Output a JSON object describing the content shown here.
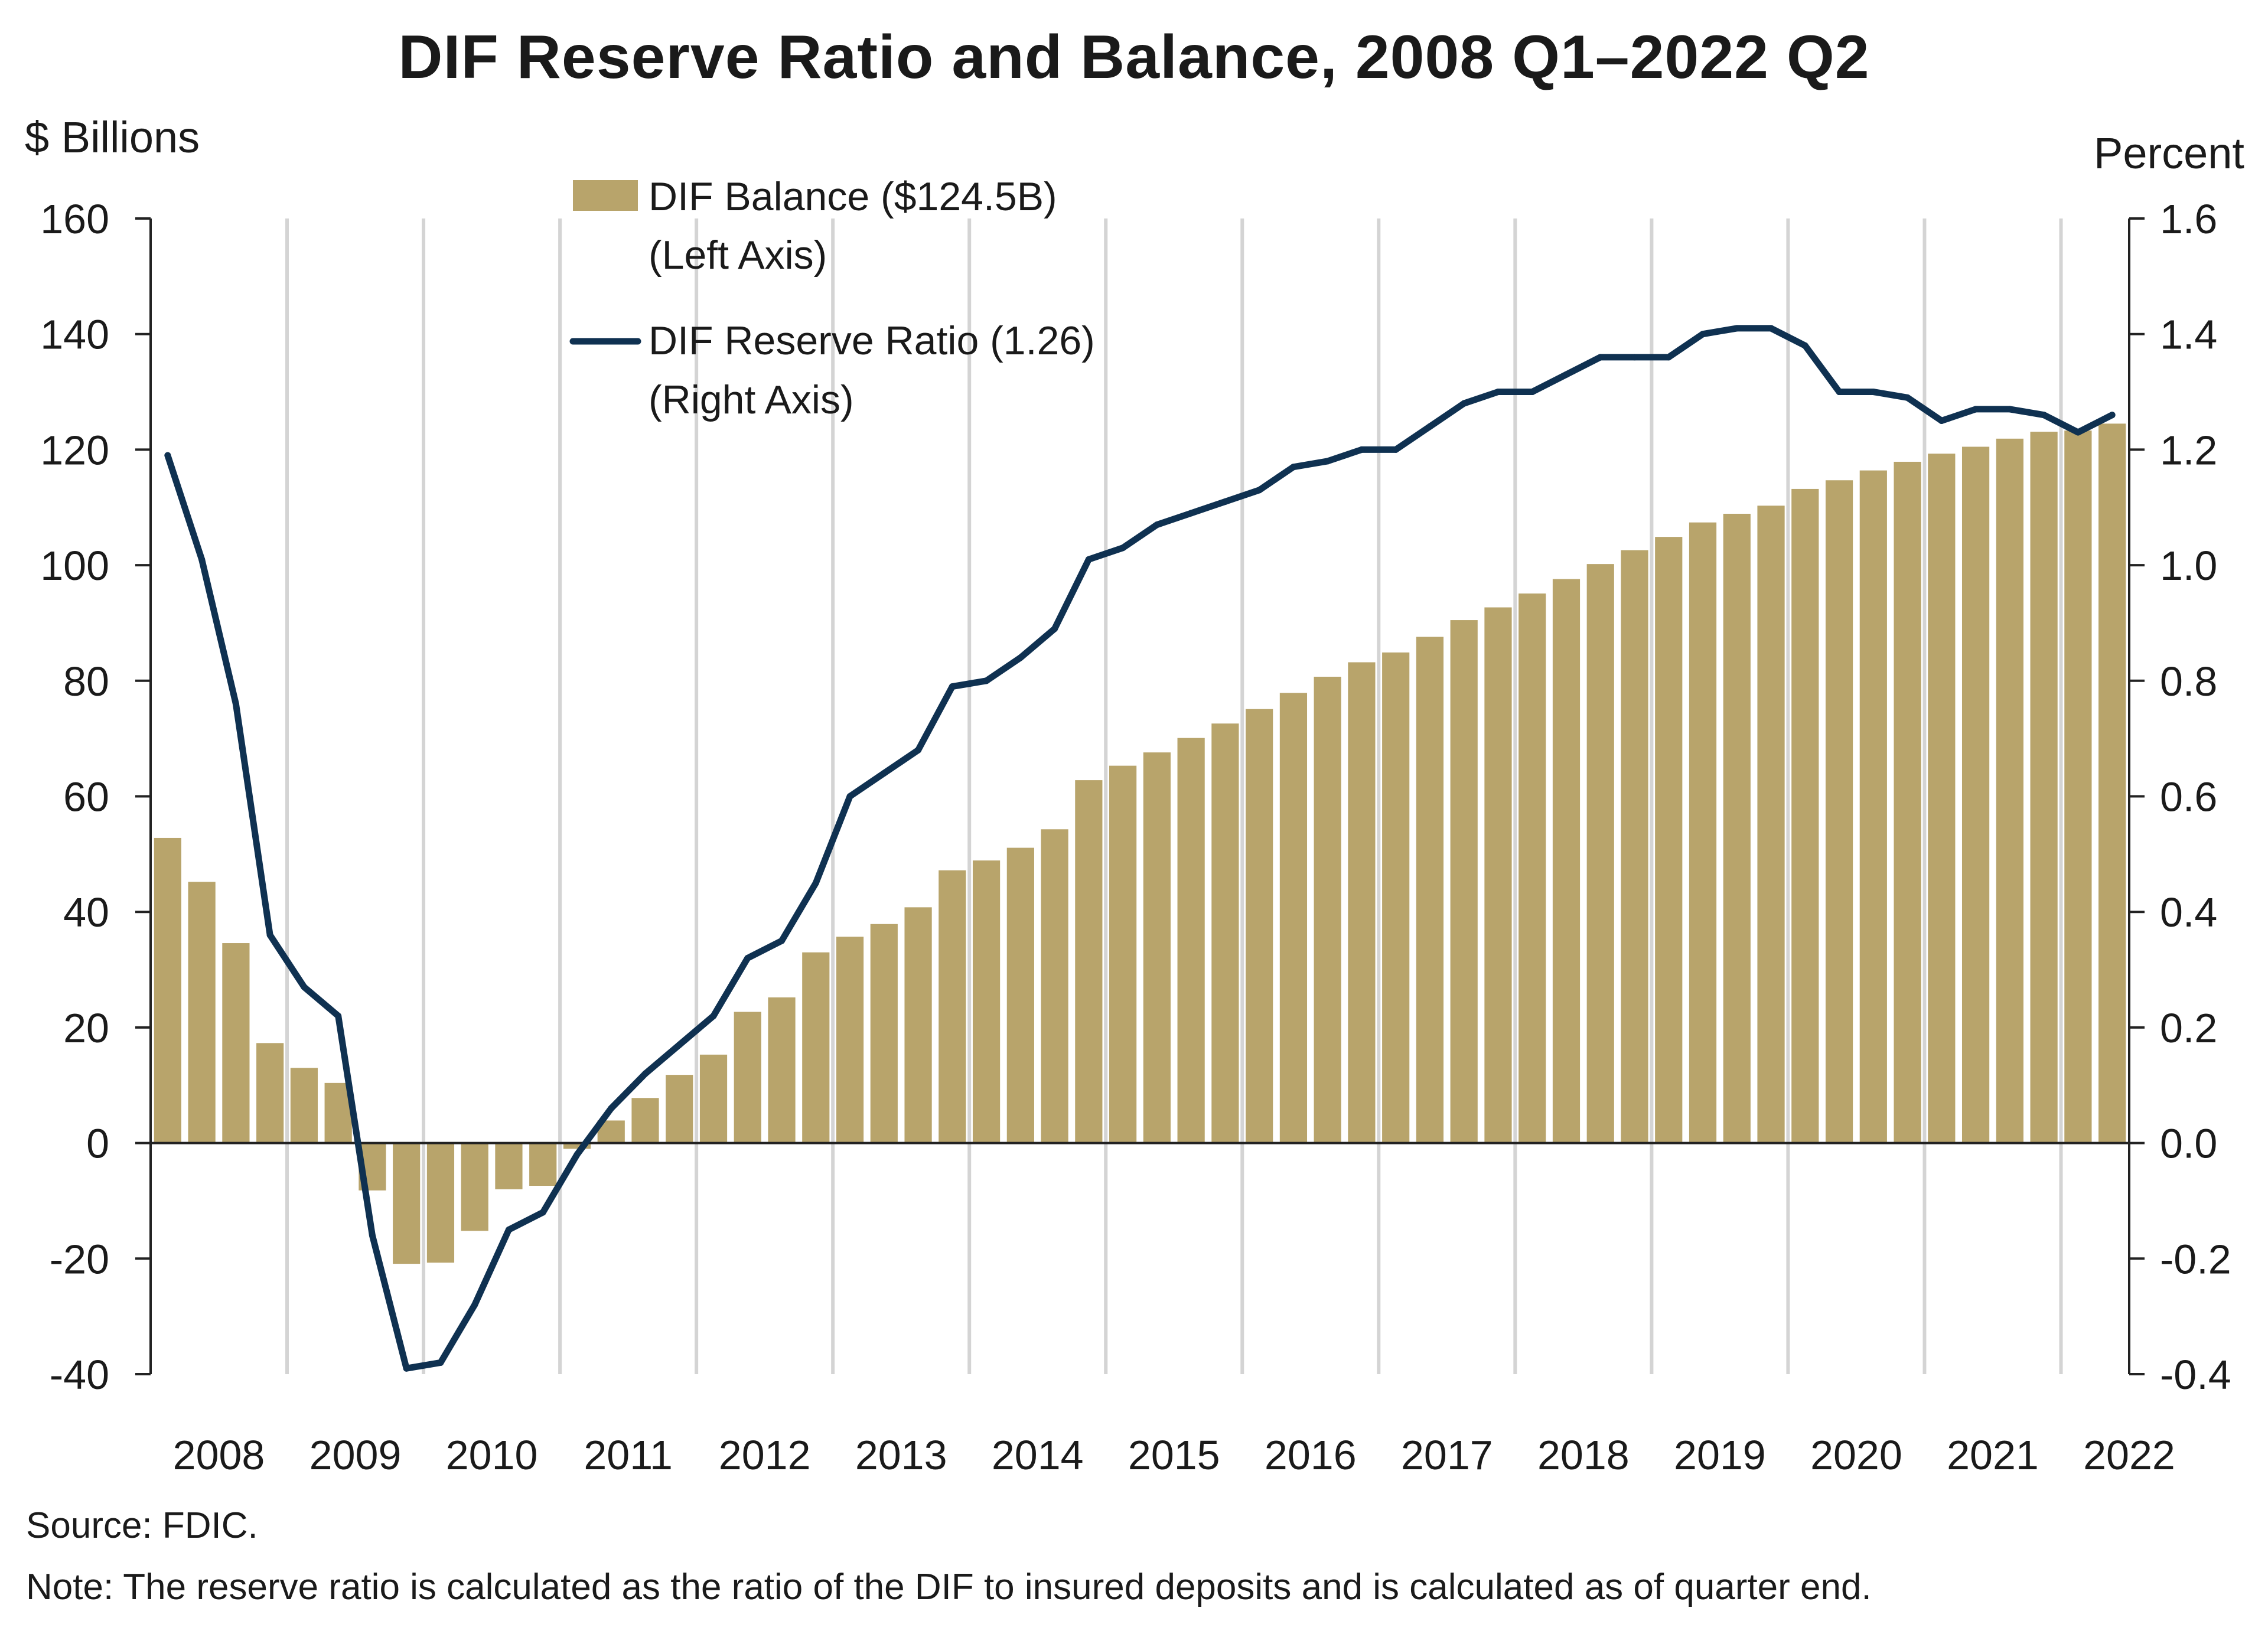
{
  "chart_data": {
    "type": "bar+line",
    "title": "DIF Reserve Ratio and Balance, 2008 Q1–2022 Q2",
    "left_axis": {
      "label": "$ Billions",
      "range": [
        -40,
        160
      ],
      "ticks": [
        160,
        140,
        120,
        100,
        80,
        60,
        40,
        20,
        0,
        -20,
        -40
      ],
      "tick_labels": [
        "160",
        "140",
        "120",
        "100",
        "80",
        "60",
        "40",
        "20",
        "0",
        "-20",
        "-40"
      ]
    },
    "right_axis": {
      "label": "Percent",
      "range": [
        -0.4,
        1.6
      ],
      "ticks": [
        1.6,
        1.4,
        1.2,
        1.0,
        0.8,
        0.6,
        0.4,
        0.2,
        0.0,
        -0.2,
        -0.4
      ],
      "tick_labels": [
        "1.6",
        "1.4",
        "1.2",
        "1.0",
        "0.8",
        "0.6",
        "0.4",
        "0.2",
        "0.0",
        "-0.2",
        "-0.4"
      ]
    },
    "x_axis": {
      "labels": [
        "2008",
        "2009",
        "2010",
        "2011",
        "2012",
        "2013",
        "2014",
        "2015",
        "2016",
        "2017",
        "2018",
        "2019",
        "2020",
        "2021",
        "2022"
      ],
      "quarters_per_label": 4
    },
    "grid": "vertical at year boundaries",
    "legend_position": "top-left",
    "series": [
      {
        "name": "DIF Balance ($124.5B)",
        "subtitle": "(Left Axis)",
        "type": "bar",
        "axis": "left",
        "color": "#b8a46b",
        "values": [
          52.8,
          45.2,
          34.6,
          17.3,
          13.0,
          10.4,
          -8.2,
          -20.9,
          -20.7,
          -15.2,
          -8.0,
          -7.4,
          -1.0,
          3.9,
          7.8,
          11.8,
          15.3,
          22.7,
          25.2,
          33.0,
          35.7,
          37.9,
          40.8,
          47.2,
          48.9,
          51.1,
          54.3,
          62.8,
          65.3,
          67.6,
          70.1,
          72.6,
          75.1,
          77.9,
          80.7,
          83.2,
          84.9,
          87.6,
          90.5,
          92.7,
          95.1,
          97.6,
          100.2,
          102.6,
          104.9,
          107.4,
          108.9,
          110.3,
          113.2,
          114.7,
          116.4,
          117.9,
          119.3,
          120.5,
          121.9,
          123.1,
          123.3,
          124.5
        ]
      },
      {
        "name": "DIF Reserve Ratio (1.26)",
        "subtitle": "(Right Axis)",
        "type": "line",
        "axis": "right",
        "color": "#0f3151",
        "values": [
          1.19,
          1.01,
          0.76,
          0.36,
          0.27,
          0.22,
          -0.16,
          -0.39,
          -0.38,
          -0.28,
          -0.15,
          -0.12,
          -0.02,
          0.06,
          0.12,
          0.17,
          0.22,
          0.32,
          0.35,
          0.45,
          0.6,
          0.64,
          0.68,
          0.79,
          0.8,
          0.84,
          0.89,
          1.01,
          1.03,
          1.07,
          1.09,
          1.11,
          1.13,
          1.17,
          1.18,
          1.2,
          1.2,
          1.24,
          1.28,
          1.3,
          1.3,
          1.33,
          1.36,
          1.36,
          1.36,
          1.4,
          1.41,
          1.41,
          1.38,
          1.3,
          1.3,
          1.29,
          1.25,
          1.27,
          1.27,
          1.26,
          1.23,
          1.26
        ]
      }
    ]
  },
  "footer": {
    "source": "Source: FDIC.",
    "note": "Note: The reserve ratio is calculated as the ratio of the DIF to insured deposits and is calculated as of quarter end."
  }
}
